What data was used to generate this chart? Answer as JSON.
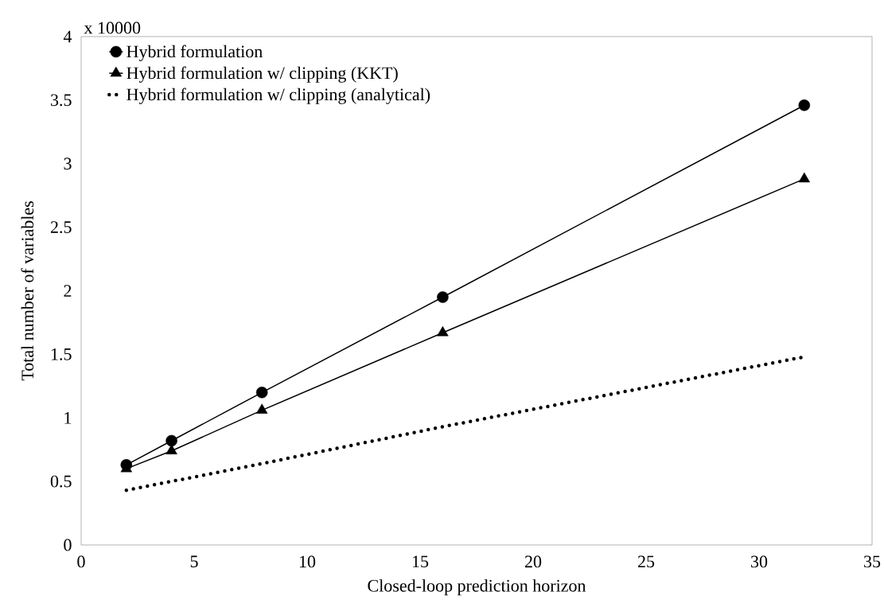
{
  "chart_data": {
    "type": "line",
    "xlabel": "Closed-loop prediction horizon",
    "ylabel": "Total number of variables",
    "annotations": [
      "x 10000"
    ],
    "x": [
      2,
      4,
      8,
      16,
      32
    ],
    "series": [
      {
        "name": "Hybrid formulation",
        "color": "#000000",
        "values": [
          0.63,
          0.82,
          1.2,
          1.95,
          3.46
        ],
        "marker": "circle",
        "line_style": "solid"
      },
      {
        "name": "Hybrid formulation w/ clipping (KKT)",
        "color": "#000000",
        "values": [
          0.6,
          0.74,
          1.06,
          1.67,
          2.88
        ],
        "marker": "triangle",
        "line_style": "solid"
      },
      {
        "name": "Hybrid formulation w/ clipping (analytical)",
        "color": "#000000",
        "values": [
          0.43,
          0.5,
          0.64,
          0.93,
          1.48
        ],
        "marker": "none",
        "line_style": "dotted"
      }
    ],
    "xlim": [
      0,
      35
    ],
    "ylim": [
      0,
      4
    ],
    "xticks": [
      0,
      5,
      10,
      15,
      20,
      25,
      30,
      35
    ],
    "yticks": [
      0,
      0.5,
      1,
      1.5,
      2,
      2.5,
      3,
      3.5,
      4
    ],
    "grid": false,
    "legend": "top left"
  }
}
